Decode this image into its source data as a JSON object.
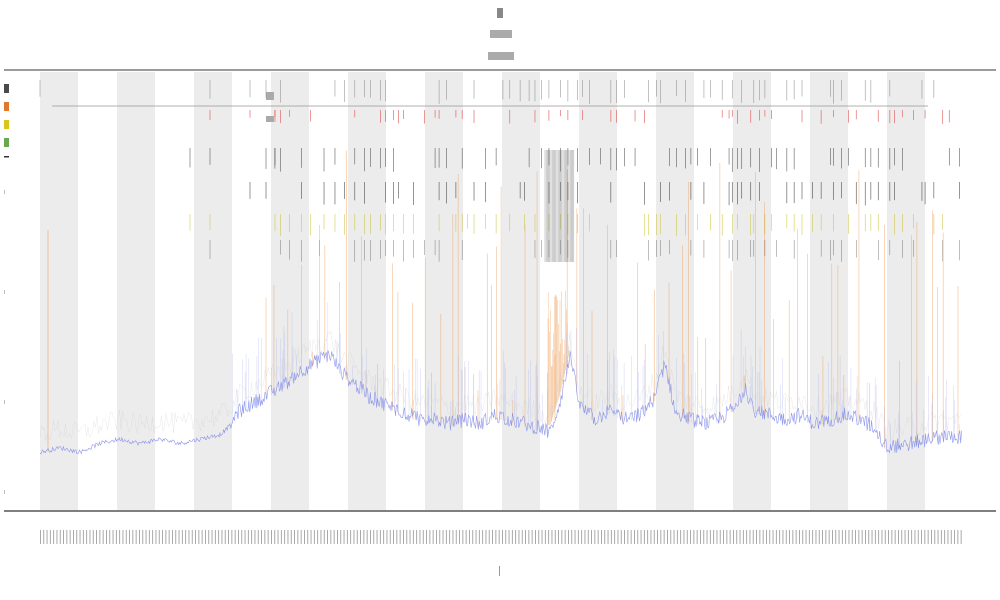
{
  "chart_data": {
    "type": "line",
    "title": "",
    "subtitle": "",
    "xlabel": "",
    "ylabel": "",
    "legend": {
      "placement": "top-left",
      "entries": []
    },
    "grid": false,
    "x_range": [
      0,
      922
    ],
    "ylim": [
      0,
      1
    ],
    "shaded_bands": [
      [
        0,
        38
      ],
      [
        77,
        115
      ],
      [
        154,
        192
      ],
      [
        231,
        269
      ],
      [
        308,
        346
      ],
      [
        385,
        423
      ],
      [
        462,
        500
      ],
      [
        539,
        577
      ],
      [
        616,
        654
      ],
      [
        693,
        731
      ],
      [
        770,
        808
      ],
      [
        847,
        885
      ]
    ],
    "baseline": [
      [
        0,
        0.13
      ],
      [
        20,
        0.14
      ],
      [
        40,
        0.13
      ],
      [
        60,
        0.15
      ],
      [
        80,
        0.16
      ],
      [
        100,
        0.15
      ],
      [
        120,
        0.16
      ],
      [
        140,
        0.15
      ],
      [
        160,
        0.16
      ],
      [
        180,
        0.17
      ],
      [
        190,
        0.19
      ],
      [
        200,
        0.22
      ],
      [
        215,
        0.24
      ],
      [
        230,
        0.26
      ],
      [
        245,
        0.28
      ],
      [
        260,
        0.31
      ],
      [
        275,
        0.33
      ],
      [
        290,
        0.35
      ],
      [
        300,
        0.31
      ],
      [
        310,
        0.29
      ],
      [
        320,
        0.27
      ],
      [
        330,
        0.25
      ],
      [
        340,
        0.24
      ],
      [
        350,
        0.23
      ],
      [
        360,
        0.22
      ],
      [
        370,
        0.21
      ],
      [
        380,
        0.2
      ],
      [
        395,
        0.2
      ],
      [
        410,
        0.19
      ],
      [
        425,
        0.2
      ],
      [
        440,
        0.19
      ],
      [
        455,
        0.21
      ],
      [
        470,
        0.2
      ],
      [
        485,
        0.19
      ],
      [
        500,
        0.18
      ],
      [
        510,
        0.17
      ],
      [
        520,
        0.24
      ],
      [
        530,
        0.34
      ],
      [
        540,
        0.23
      ],
      [
        555,
        0.2
      ],
      [
        570,
        0.22
      ],
      [
        585,
        0.2
      ],
      [
        600,
        0.21
      ],
      [
        615,
        0.25
      ],
      [
        625,
        0.33
      ],
      [
        635,
        0.22
      ],
      [
        650,
        0.2
      ],
      [
        665,
        0.19
      ],
      [
        680,
        0.2
      ],
      [
        695,
        0.23
      ],
      [
        705,
        0.27
      ],
      [
        715,
        0.22
      ],
      [
        730,
        0.21
      ],
      [
        745,
        0.2
      ],
      [
        760,
        0.21
      ],
      [
        775,
        0.19
      ],
      [
        790,
        0.2
      ],
      [
        805,
        0.21
      ],
      [
        820,
        0.2
      ],
      [
        835,
        0.18
      ],
      [
        845,
        0.14
      ],
      [
        860,
        0.14
      ],
      [
        880,
        0.15
      ],
      [
        900,
        0.16
      ],
      [
        922,
        0.16
      ]
    ]
  }
}
